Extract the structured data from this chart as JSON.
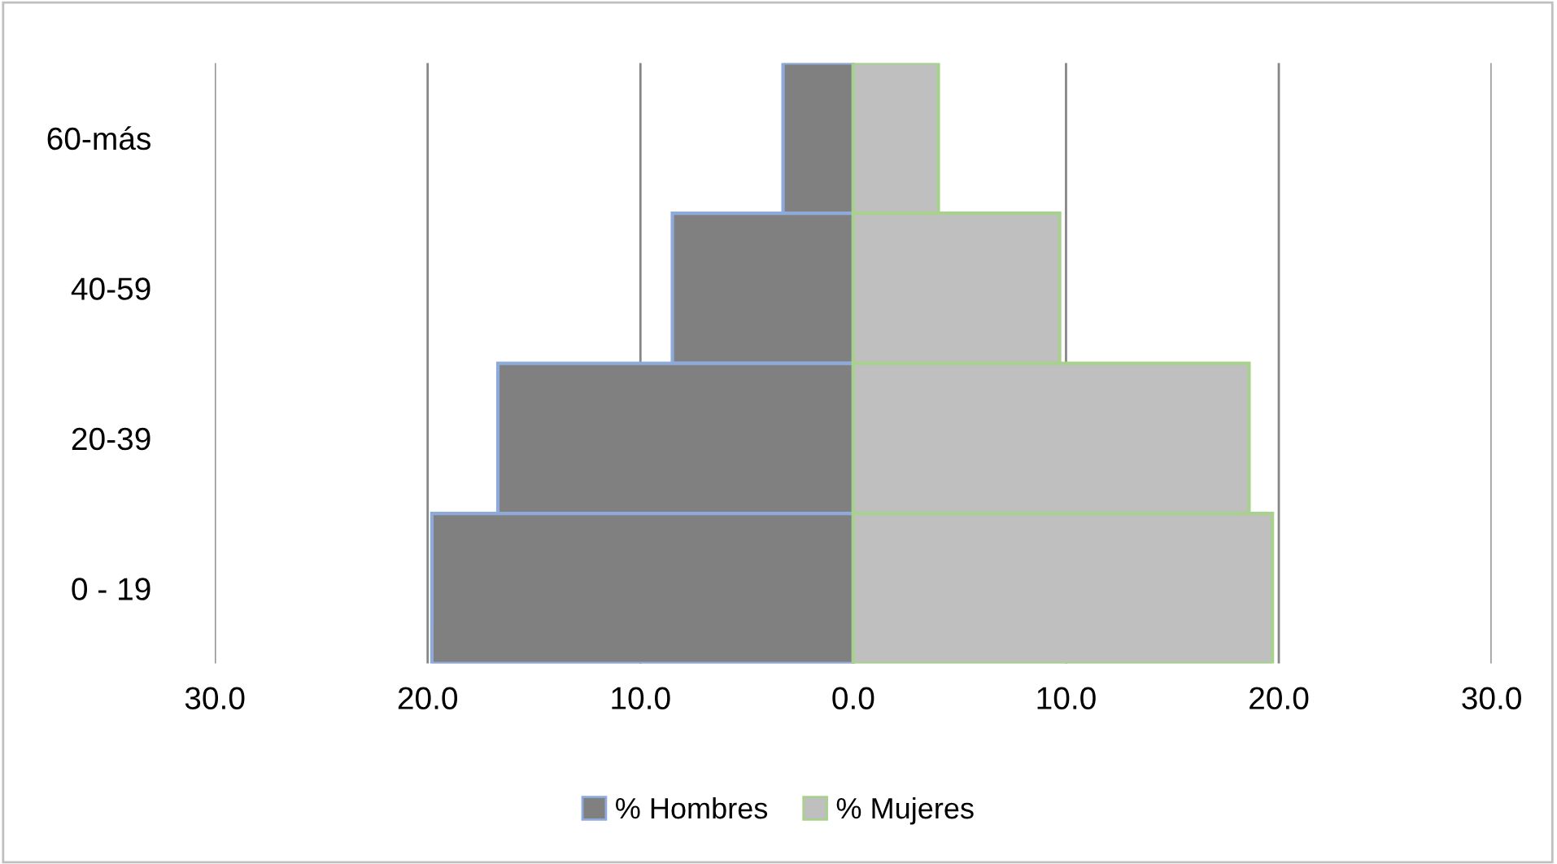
{
  "chart_data": {
    "type": "bar",
    "orientation": "horizontal",
    "categories": [
      "60-más",
      "40-59",
      "20-39",
      "0 - 19"
    ],
    "series": [
      {
        "name": "% Hombres",
        "color": "#808080",
        "values": [
          -3.3,
          -8.5,
          -16.7,
          -19.8
        ]
      },
      {
        "name": "% Mujeres",
        "color": "#bfbfbf",
        "values": [
          4.0,
          9.7,
          18.6,
          19.7
        ]
      }
    ],
    "xlim": [
      -30,
      30
    ],
    "xticks": [
      {
        "value": -30,
        "label": "30.0"
      },
      {
        "value": -20,
        "label": "20.0"
      },
      {
        "value": -10,
        "label": "10.0"
      },
      {
        "value": 0,
        "label": "0.0"
      },
      {
        "value": 10,
        "label": "10.0"
      },
      {
        "value": 20,
        "label": "20.0"
      },
      {
        "value": 30,
        "label": "30.0"
      }
    ],
    "stacked": true,
    "grid": "x",
    "legend": "bottom"
  }
}
